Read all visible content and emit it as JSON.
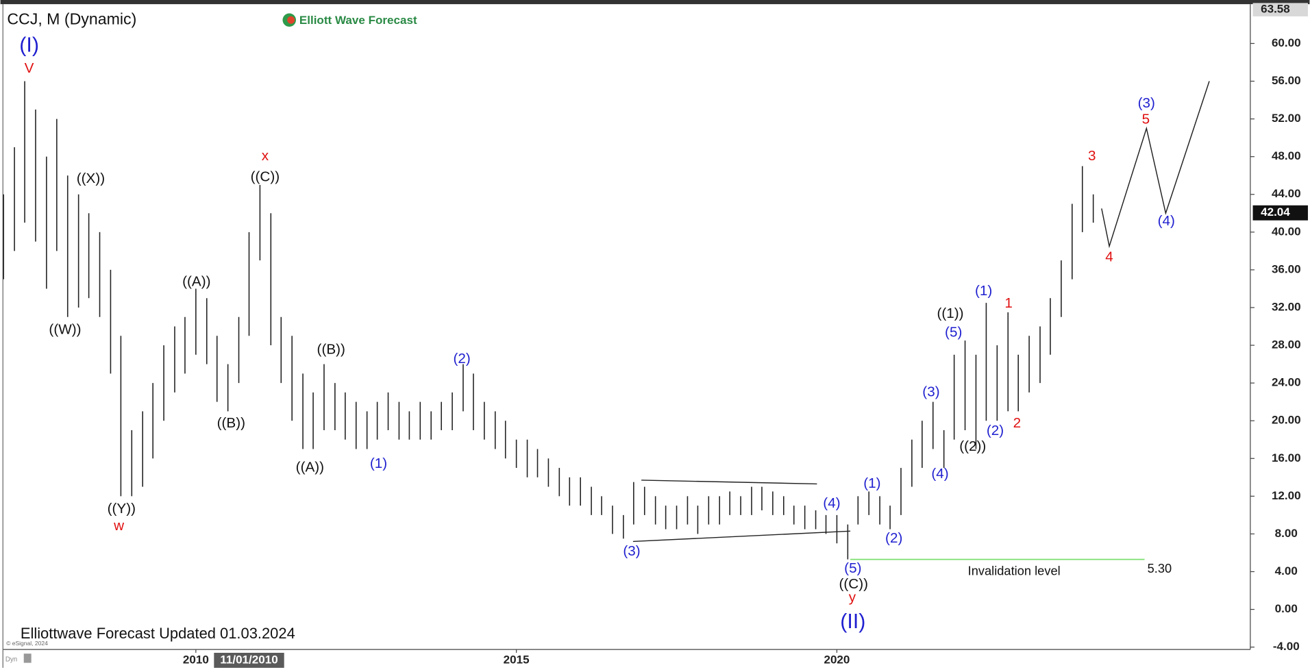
{
  "chart_data": {
    "type": "range_bar",
    "title": "CCJ, M (Dynamic)",
    "logo": "Elliott Wave Forecast",
    "footer": "Elliottwave Forecast Updated 01.03.2024",
    "copyright": "© eSignal, 2024",
    "mode": "Dyn",
    "bar_color": "#222222",
    "xlim": [
      2006.99,
      2026.45
    ],
    "ylim": [
      -4.25,
      63.9
    ],
    "xticks": [
      2010,
      2015,
      2020
    ],
    "yticks": [
      {
        "value": -4,
        "label": "-4.00"
      },
      {
        "value": 0,
        "label": "0.00"
      },
      {
        "value": 4,
        "label": "4.00"
      },
      {
        "value": 8,
        "label": "8.00"
      },
      {
        "value": 12,
        "label": "12.00"
      },
      {
        "value": 16,
        "label": "16.00"
      },
      {
        "value": 20,
        "label": "20.00"
      },
      {
        "value": 24,
        "label": "24.00"
      },
      {
        "value": 28,
        "label": "28.00"
      },
      {
        "value": 32,
        "label": "32.00"
      },
      {
        "value": 36,
        "label": "36.00"
      },
      {
        "value": 40,
        "label": "40.00"
      },
      {
        "value": 44,
        "label": "44.00"
      },
      {
        "value": 48,
        "label": "48.00"
      },
      {
        "value": 52,
        "label": "52.00"
      },
      {
        "value": 56,
        "label": "56.00"
      },
      {
        "value": 60,
        "label": "60.00"
      }
    ],
    "top_price": 63.58,
    "last_price": 42.04,
    "cursor": {
      "value": 2010.83,
      "label": "11/01/2010"
    },
    "x": [
      2007.0,
      2007.17,
      2007.33,
      2007.5,
      2007.67,
      2007.83,
      2008.0,
      2008.17,
      2008.33,
      2008.5,
      2008.67,
      2008.83,
      2009.0,
      2009.17,
      2009.33,
      2009.5,
      2009.67,
      2009.83,
      2010.0,
      2010.17,
      2010.33,
      2010.5,
      2010.67,
      2010.83,
      2011.0,
      2011.17,
      2011.33,
      2011.5,
      2011.67,
      2011.83,
      2012.0,
      2012.17,
      2012.33,
      2012.5,
      2012.67,
      2012.83,
      2013.0,
      2013.17,
      2013.33,
      2013.5,
      2013.67,
      2013.83,
      2014.0,
      2014.17,
      2014.33,
      2014.5,
      2014.67,
      2014.83,
      2015.0,
      2015.17,
      2015.33,
      2015.5,
      2015.67,
      2015.83,
      2016.0,
      2016.17,
      2016.33,
      2016.5,
      2016.67,
      2016.83,
      2017.0,
      2017.17,
      2017.33,
      2017.5,
      2017.67,
      2017.83,
      2018.0,
      2018.17,
      2018.33,
      2018.5,
      2018.67,
      2018.83,
      2019.0,
      2019.17,
      2019.33,
      2019.5,
      2019.67,
      2019.83,
      2020.0,
      2020.17,
      2020.33,
      2020.5,
      2020.67,
      2020.83,
      2021.0,
      2021.17,
      2021.33,
      2021.5,
      2021.67,
      2021.83,
      2022.0,
      2022.17,
      2022.33,
      2022.5,
      2022.67,
      2022.83,
      2023.0,
      2023.17,
      2023.33,
      2023.5,
      2023.67,
      2023.83,
      2024.0
    ],
    "high": [
      44,
      49,
      56,
      53,
      48,
      52,
      46,
      44,
      42,
      40,
      36,
      29,
      19,
      21,
      24,
      28,
      30,
      31,
      34,
      33,
      29,
      26,
      31,
      40,
      45,
      42,
      31,
      29,
      25,
      23,
      26,
      24,
      23,
      22,
      21,
      22,
      23,
      22,
      21,
      22,
      21,
      22,
      23,
      26,
      25,
      22,
      21,
      20,
      18,
      18,
      17,
      16,
      15,
      14,
      14,
      13,
      12,
      11,
      10,
      13.5,
      13,
      12,
      11,
      11,
      12,
      11,
      12,
      12,
      12.5,
      12,
      13,
      13,
      12.5,
      12,
      11,
      11,
      10.5,
      10,
      10,
      9,
      12,
      12.5,
      12,
      11,
      15,
      18,
      20,
      22,
      19,
      27,
      28.5,
      27,
      32.5,
      28,
      31.5,
      27,
      29,
      30,
      33,
      37,
      43,
      47,
      44
    ],
    "low": [
      35,
      38,
      41,
      39,
      34,
      38,
      31,
      32,
      33,
      31,
      25,
      12,
      12,
      13,
      16,
      20,
      23,
      25,
      27,
      26,
      22,
      21,
      24,
      29,
      37,
      28,
      24,
      20,
      17,
      17,
      19,
      19,
      18,
      17,
      17,
      18,
      19,
      18,
      18,
      18,
      18,
      19,
      19,
      21,
      19,
      18,
      17,
      16,
      15,
      14,
      14,
      13,
      12,
      11,
      11,
      10,
      10,
      8,
      7.5,
      9,
      10,
      9,
      8.5,
      8.5,
      9,
      8,
      9,
      9,
      10,
      10,
      10,
      10.5,
      10,
      10,
      9,
      8.5,
      8.5,
      8,
      7,
      5.3,
      9,
      10,
      9,
      8.5,
      10,
      13,
      15,
      17,
      15,
      18,
      19,
      17,
      20,
      20,
      21,
      21,
      23,
      24,
      27,
      31,
      35,
      40,
      41
    ],
    "lines": [
      {
        "x": [
          2016.95,
          2019.69
        ],
        "y": [
          13.7,
          13.3
        ],
        "color": "#222222"
      },
      {
        "x": [
          2016.82,
          2020.21
        ],
        "y": [
          7.2,
          8.3
        ],
        "color": "#222222"
      },
      {
        "x": [
          2024.13,
          2024.25,
          2024.83,
          2025.13,
          2025.81
        ],
        "y": [
          42.5,
          38.5,
          51,
          42,
          56
        ],
        "color": "#222222"
      }
    ],
    "invalidation": {
      "x": [
        2020.21,
        2024.8
      ],
      "value": 5.3,
      "label": "5.30",
      "text": "Invalidation level",
      "color": "#7ddf6e"
    },
    "annotations": [
      {
        "text": "(I)",
        "x": 2007.4,
        "y": 59.7,
        "color": "#1f1fd0",
        "big": true
      },
      {
        "text": "V",
        "x": 2007.4,
        "y": 57.3,
        "color": "#e01010"
      },
      {
        "text": "((W))",
        "x": 2007.96,
        "y": 29.6,
        "color": "#111111"
      },
      {
        "text": "((X))",
        "x": 2008.36,
        "y": 45.6,
        "color": "#111111"
      },
      {
        "text": "((Y))",
        "x": 2008.84,
        "y": 10.6,
        "color": "#111111"
      },
      {
        "text": "w",
        "x": 2008.8,
        "y": 8.8,
        "color": "#e01010"
      },
      {
        "text": "((A))",
        "x": 2010.01,
        "y": 34.7,
        "color": "#111111"
      },
      {
        "text": "((B))",
        "x": 2010.55,
        "y": 19.7,
        "color": "#111111"
      },
      {
        "text": "x",
        "x": 2011.08,
        "y": 48.0,
        "color": "#e01010"
      },
      {
        "text": "((C))",
        "x": 2011.08,
        "y": 45.8,
        "color": "#111111"
      },
      {
        "text": "((A))",
        "x": 2011.78,
        "y": 15.0,
        "color": "#111111"
      },
      {
        "text": "((B))",
        "x": 2012.11,
        "y": 27.5,
        "color": "#111111"
      },
      {
        "text": "(1)",
        "x": 2012.85,
        "y": 15.4,
        "color": "#1f1fd0"
      },
      {
        "text": "(2)",
        "x": 2014.15,
        "y": 26.5,
        "color": "#1f1fd0"
      },
      {
        "text": "(3)",
        "x": 2016.8,
        "y": 6.1,
        "color": "#1f1fd0"
      },
      {
        "text": "(4)",
        "x": 2019.92,
        "y": 11.2,
        "color": "#1f1fd0"
      },
      {
        "text": "(5)",
        "x": 2020.25,
        "y": 4.3,
        "color": "#1f1fd0"
      },
      {
        "text": "((C))",
        "x": 2020.26,
        "y": 2.6,
        "color": "#111111"
      },
      {
        "text": "y",
        "x": 2020.24,
        "y": 1.2,
        "color": "#e01010"
      },
      {
        "text": "(II)",
        "x": 2020.25,
        "y": -1.4,
        "color": "#1f1fd0",
        "big": true
      },
      {
        "text": "(1)",
        "x": 2020.55,
        "y": 13.3,
        "color": "#1f1fd0"
      },
      {
        "text": "(2)",
        "x": 2020.89,
        "y": 7.5,
        "color": "#1f1fd0"
      },
      {
        "text": "(3)",
        "x": 2021.47,
        "y": 23.0,
        "color": "#1f1fd0"
      },
      {
        "text": "(4)",
        "x": 2021.61,
        "y": 14.3,
        "color": "#1f1fd0"
      },
      {
        "text": "((1))",
        "x": 2021.77,
        "y": 31.3,
        "color": "#111111"
      },
      {
        "text": "(5)",
        "x": 2021.82,
        "y": 29.3,
        "color": "#1f1fd0"
      },
      {
        "text": "((2))",
        "x": 2022.12,
        "y": 17.2,
        "color": "#111111"
      },
      {
        "text": "(1)",
        "x": 2022.29,
        "y": 33.7,
        "color": "#1f1fd0"
      },
      {
        "text": "(2)",
        "x": 2022.47,
        "y": 18.9,
        "color": "#1f1fd0"
      },
      {
        "text": "1",
        "x": 2022.68,
        "y": 32.4,
        "color": "#e01010"
      },
      {
        "text": "2",
        "x": 2022.81,
        "y": 19.7,
        "color": "#e01010"
      },
      {
        "text": "3",
        "x": 2023.98,
        "y": 48.0,
        "color": "#e01010"
      },
      {
        "text": "4",
        "x": 2024.25,
        "y": 37.3,
        "color": "#e01010"
      },
      {
        "text": "(3)",
        "x": 2024.83,
        "y": 53.6,
        "color": "#1f1fd0"
      },
      {
        "text": "5",
        "x": 2024.82,
        "y": 51.9,
        "color": "#e01010"
      },
      {
        "text": "(4)",
        "x": 2025.14,
        "y": 41.1,
        "color": "#1f1fd0"
      }
    ]
  }
}
